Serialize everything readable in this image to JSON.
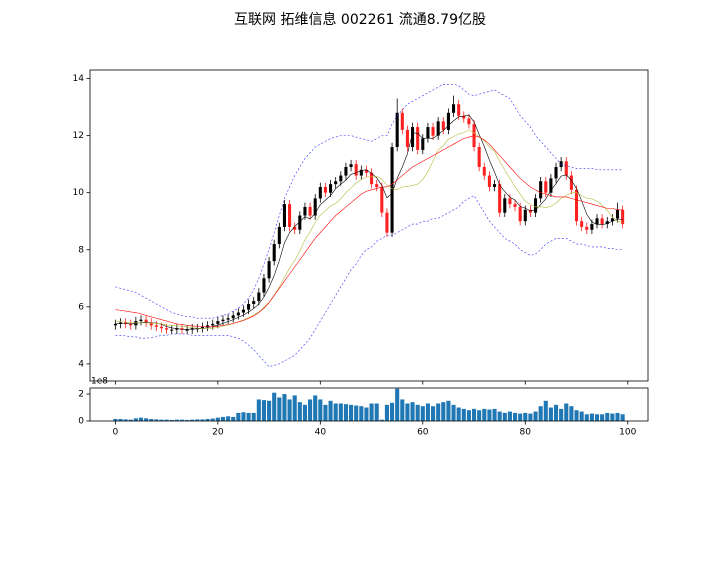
{
  "chart_data": [
    {
      "type": "candlestick",
      "title": "互联网 拓维信息 002261 流通8.79亿股",
      "x": [
        0,
        1,
        2,
        3,
        4,
        5,
        6,
        7,
        8,
        9,
        10,
        11,
        12,
        13,
        14,
        15,
        16,
        17,
        18,
        19,
        20,
        21,
        22,
        23,
        24,
        25,
        26,
        27,
        28,
        29,
        30,
        31,
        32,
        33,
        34,
        35,
        36,
        37,
        38,
        39,
        40,
        41,
        42,
        43,
        44,
        45,
        46,
        47,
        48,
        49,
        50,
        51,
        52,
        53,
        54,
        55,
        56,
        57,
        58,
        59,
        60,
        61,
        62,
        63,
        64,
        65,
        66,
        67,
        68,
        69,
        70,
        71,
        72,
        73,
        74,
        75,
        76,
        77,
        78,
        79,
        80,
        81,
        82,
        83,
        84,
        85,
        86,
        87,
        88,
        89,
        90,
        91,
        92,
        93,
        94,
        95,
        96,
        97,
        98,
        99
      ],
      "open": [
        5.35,
        5.4,
        5.45,
        5.4,
        5.35,
        5.5,
        5.55,
        5.45,
        5.35,
        5.3,
        5.25,
        5.2,
        5.2,
        5.25,
        5.2,
        5.2,
        5.25,
        5.25,
        5.3,
        5.35,
        5.4,
        5.5,
        5.55,
        5.6,
        5.7,
        5.8,
        5.9,
        6.1,
        6.2,
        6.5,
        7.0,
        7.6,
        8.2,
        8.8,
        9.6,
        8.8,
        8.7,
        9.2,
        9.5,
        9.2,
        9.8,
        10.2,
        10.0,
        10.3,
        10.4,
        10.6,
        10.9,
        11.0,
        10.6,
        10.8,
        10.7,
        10.3,
        10.2,
        9.3,
        8.6,
        11.6,
        12.8,
        12.2,
        11.6,
        12.3,
        11.5,
        11.9,
        12.3,
        12.0,
        12.5,
        12.2,
        12.8,
        13.1,
        12.7,
        12.6,
        12.4,
        11.6,
        10.9,
        10.6,
        10.2,
        10.3,
        9.3,
        9.8,
        9.6,
        9.5,
        9.0,
        9.4,
        9.3,
        9.8,
        10.4,
        10.0,
        10.5,
        10.9,
        11.1,
        10.6,
        10.1,
        9.0,
        8.8,
        8.7,
        8.9,
        9.1,
        8.9,
        9.0,
        9.1,
        9.4
      ],
      "high": [
        5.55,
        5.6,
        5.6,
        5.55,
        5.65,
        5.7,
        5.7,
        5.6,
        5.5,
        5.45,
        5.4,
        5.35,
        5.4,
        5.4,
        5.35,
        5.4,
        5.4,
        5.45,
        5.5,
        5.55,
        5.65,
        5.7,
        5.75,
        5.85,
        5.95,
        6.05,
        6.25,
        6.35,
        6.65,
        7.15,
        7.75,
        8.35,
        8.95,
        9.75,
        9.75,
        8.95,
        9.35,
        9.65,
        9.65,
        9.95,
        10.35,
        10.35,
        10.45,
        10.55,
        10.75,
        11.05,
        11.15,
        11.15,
        10.95,
        10.95,
        10.85,
        10.45,
        10.35,
        9.45,
        11.75,
        13.3,
        12.95,
        12.35,
        12.45,
        12.45,
        12.05,
        12.45,
        12.45,
        12.65,
        12.65,
        12.95,
        13.4,
        13.25,
        12.85,
        12.75,
        12.55,
        11.75,
        11.05,
        10.75,
        10.45,
        10.45,
        9.95,
        9.95,
        9.75,
        9.65,
        9.55,
        9.55,
        9.95,
        10.55,
        10.55,
        10.65,
        11.05,
        11.25,
        11.25,
        10.75,
        10.25,
        9.15,
        8.95,
        9.05,
        9.25,
        9.25,
        9.15,
        9.25,
        9.65,
        9.55
      ],
      "low": [
        5.2,
        5.25,
        5.25,
        5.2,
        5.2,
        5.35,
        5.3,
        5.2,
        5.15,
        5.1,
        5.05,
        5.05,
        5.05,
        5.05,
        5.05,
        5.05,
        5.1,
        5.1,
        5.15,
        5.2,
        5.25,
        5.35,
        5.4,
        5.45,
        5.55,
        5.65,
        5.75,
        5.95,
        6.05,
        6.35,
        6.85,
        7.45,
        8.05,
        8.65,
        8.65,
        8.55,
        8.55,
        9.05,
        9.05,
        9.05,
        9.65,
        9.85,
        9.85,
        10.15,
        10.25,
        10.45,
        10.75,
        10.45,
        10.45,
        10.55,
        10.15,
        10.05,
        9.15,
        8.45,
        8.45,
        11.45,
        12.05,
        11.45,
        11.45,
        11.35,
        11.35,
        11.75,
        11.85,
        11.85,
        12.05,
        12.05,
        12.65,
        12.55,
        12.45,
        12.25,
        11.45,
        10.75,
        10.45,
        10.05,
        10.05,
        9.15,
        9.15,
        9.45,
        9.35,
        8.85,
        8.85,
        9.15,
        9.15,
        9.65,
        9.85,
        9.85,
        10.35,
        10.75,
        10.45,
        9.95,
        8.85,
        8.65,
        8.55,
        8.55,
        8.75,
        8.75,
        8.75,
        8.85,
        8.95,
        8.75
      ],
      "close": [
        5.4,
        5.45,
        5.4,
        5.35,
        5.5,
        5.55,
        5.45,
        5.35,
        5.3,
        5.25,
        5.2,
        5.2,
        5.25,
        5.2,
        5.2,
        5.25,
        5.25,
        5.3,
        5.35,
        5.4,
        5.5,
        5.55,
        5.6,
        5.7,
        5.8,
        5.9,
        6.1,
        6.2,
        6.5,
        7.0,
        7.6,
        8.2,
        8.8,
        9.6,
        8.8,
        8.7,
        9.2,
        9.5,
        9.2,
        9.8,
        10.2,
        10.0,
        10.3,
        10.4,
        10.6,
        10.9,
        11.0,
        10.6,
        10.8,
        10.7,
        10.3,
        10.2,
        9.3,
        8.6,
        11.6,
        12.8,
        12.2,
        11.6,
        12.3,
        11.5,
        11.9,
        12.3,
        12.0,
        12.5,
        12.2,
        12.8,
        13.1,
        12.7,
        12.6,
        12.4,
        11.6,
        10.9,
        10.6,
        10.2,
        10.3,
        9.3,
        9.8,
        9.6,
        9.5,
        9.0,
        9.4,
        9.3,
        9.8,
        10.4,
        10.0,
        10.5,
        10.9,
        11.1,
        10.6,
        10.1,
        9.0,
        8.8,
        8.7,
        8.9,
        9.1,
        8.9,
        9.0,
        9.1,
        9.4,
        8.9
      ],
      "up_color": "#000000",
      "down_color": "#ff2020",
      "series": [
        {
          "color": "#000000",
          "dash": "none",
          "values": [
            5.4,
            5.42,
            5.42,
            5.4,
            5.42,
            5.45,
            5.46,
            5.44,
            5.43,
            5.38,
            5.31,
            5.26,
            5.24,
            5.21,
            5.21,
            5.22,
            5.23,
            5.24,
            5.27,
            5.31,
            5.36,
            5.42,
            5.48,
            5.55,
            5.63,
            5.71,
            5.82,
            5.94,
            6.1,
            6.34,
            6.68,
            7.1,
            7.62,
            8.24,
            8.6,
            8.82,
            8.98,
            9.16,
            9.08,
            9.28,
            9.58,
            9.74,
            9.9,
            10.14,
            10.3,
            10.44,
            10.64,
            10.7,
            10.78,
            10.8,
            10.68,
            10.52,
            10.26,
            9.82,
            9.98,
            10.5,
            10.9,
            11.36,
            12.1,
            12.08,
            11.9,
            11.92,
            11.9,
            12.04,
            12.18,
            12.36,
            12.52,
            12.66,
            12.68,
            12.72,
            12.48,
            12.04,
            11.62,
            11.14,
            10.72,
            10.26,
            10.04,
            9.84,
            9.74,
            9.52,
            9.46,
            9.36,
            9.4,
            9.58,
            9.78,
            10.08,
            10.32,
            10.58,
            10.62,
            10.44,
            10.14,
            9.72,
            9.24,
            8.98,
            8.88,
            8.88,
            8.92,
            9.0,
            9.08,
            9.06
          ]
        },
        {
          "color": "#b5bd3c",
          "dash": "none",
          "values": [
            5.5,
            5.48,
            5.46,
            5.45,
            5.44,
            5.44,
            5.44,
            5.43,
            5.42,
            5.4,
            5.36,
            5.35,
            5.33,
            5.32,
            5.3,
            5.27,
            5.25,
            5.24,
            5.24,
            5.25,
            5.28,
            5.32,
            5.36,
            5.41,
            5.47,
            5.54,
            5.62,
            5.71,
            5.82,
            5.98,
            6.16,
            6.4,
            6.69,
            7.04,
            7.36,
            7.62,
            7.96,
            8.35,
            8.62,
            8.96,
            9.22,
            9.36,
            9.54,
            9.62,
            9.79,
            10.0,
            10.17,
            10.34,
            10.46,
            10.55,
            10.56,
            10.58,
            10.48,
            10.26,
            10.14,
            10.11,
            10.2,
            10.22,
            10.25,
            10.3,
            10.46,
            10.74,
            11.11,
            11.5,
            11.65,
            11.88,
            11.96,
            12.06,
            12.1,
            12.2,
            12.1,
            11.96,
            11.82,
            11.6,
            11.45,
            11.1,
            10.8,
            10.5,
            10.2,
            9.95,
            9.7,
            9.58,
            9.5,
            9.51,
            9.48,
            9.52,
            9.64,
            9.8,
            9.9,
            10.0,
            10.0,
            9.9,
            9.8,
            9.78,
            9.7,
            9.56,
            9.38,
            9.14,
            9.0,
            8.95
          ]
        },
        {
          "color": "#ff0000",
          "dash": "none",
          "values": [
            5.9,
            5.88,
            5.85,
            5.82,
            5.8,
            5.75,
            5.7,
            5.65,
            5.6,
            5.55,
            5.5,
            5.45,
            5.4,
            5.38,
            5.35,
            5.33,
            5.32,
            5.31,
            5.3,
            5.3,
            5.32,
            5.35,
            5.38,
            5.42,
            5.47,
            5.52,
            5.6,
            5.68,
            5.8,
            5.95,
            6.15,
            6.4,
            6.65,
            6.9,
            7.15,
            7.4,
            7.65,
            7.9,
            8.15,
            8.4,
            8.6,
            8.8,
            9.0,
            9.2,
            9.35,
            9.5,
            9.65,
            9.8,
            9.95,
            10.05,
            10.1,
            10.15,
            10.2,
            10.2,
            10.3,
            10.45,
            10.6,
            10.75,
            10.9,
            11.0,
            11.1,
            11.2,
            11.3,
            11.4,
            11.5,
            11.6,
            11.7,
            11.8,
            11.9,
            11.95,
            12.0,
            11.95,
            11.85,
            11.7,
            11.5,
            11.3,
            11.1,
            10.9,
            10.7,
            10.5,
            10.35,
            10.2,
            10.1,
            10.0,
            9.95,
            9.9,
            9.85,
            9.85,
            9.85,
            9.8,
            9.75,
            9.7,
            9.65,
            9.6,
            9.55,
            9.5,
            9.45,
            9.45,
            9.4,
            9.4
          ]
        },
        {
          "color": "#3030ff",
          "dash": "2,2",
          "values": [
            6.7,
            6.65,
            6.6,
            6.55,
            6.5,
            6.4,
            6.3,
            6.2,
            6.1,
            6.0,
            5.9,
            5.8,
            5.75,
            5.7,
            5.65,
            5.65,
            5.6,
            5.6,
            5.6,
            5.6,
            5.65,
            5.7,
            5.75,
            5.85,
            5.95,
            6.1,
            6.3,
            6.6,
            7.0,
            7.5,
            8.0,
            8.6,
            9.2,
            9.8,
            10.2,
            10.6,
            10.9,
            11.2,
            11.4,
            11.6,
            11.7,
            11.8,
            11.9,
            11.95,
            12.0,
            12.0,
            12.0,
            11.95,
            11.9,
            11.85,
            11.8,
            11.9,
            12.0,
            12.0,
            12.4,
            12.7,
            12.9,
            13.1,
            13.2,
            13.3,
            13.4,
            13.5,
            13.6,
            13.7,
            13.8,
            13.8,
            13.8,
            13.75,
            13.6,
            13.45,
            13.4,
            13.45,
            13.5,
            13.55,
            13.6,
            13.5,
            13.4,
            13.3,
            13.0,
            12.7,
            12.5,
            12.3,
            12.0,
            11.8,
            11.6,
            11.4,
            11.2,
            11.0,
            10.95,
            10.9,
            10.85,
            10.85,
            10.85,
            10.85,
            10.8,
            10.8,
            10.8,
            10.8,
            10.8,
            10.8
          ]
        },
        {
          "color": "#3030ff",
          "dash": "2,2",
          "values": [
            5.0,
            5.0,
            4.98,
            4.95,
            4.95,
            4.9,
            4.9,
            4.92,
            4.95,
            5.0,
            5.0,
            5.05,
            5.05,
            5.05,
            5.05,
            5.0,
            5.0,
            5.0,
            5.0,
            5.0,
            5.0,
            5.0,
            5.0,
            4.95,
            4.9,
            4.8,
            4.65,
            4.5,
            4.3,
            4.1,
            3.9,
            3.95,
            4.0,
            4.1,
            4.2,
            4.3,
            4.5,
            4.7,
            4.9,
            5.2,
            5.5,
            5.8,
            6.1,
            6.4,
            6.7,
            7.0,
            7.3,
            7.5,
            7.8,
            8.0,
            8.1,
            8.3,
            8.4,
            8.5,
            8.5,
            8.6,
            8.7,
            8.8,
            8.9,
            8.9,
            9.0,
            9.0,
            9.1,
            9.1,
            9.2,
            9.3,
            9.4,
            9.5,
            9.7,
            9.8,
            9.9,
            9.6,
            9.3,
            9.0,
            8.8,
            8.6,
            8.4,
            8.3,
            8.2,
            8.0,
            7.9,
            7.8,
            7.85,
            8.0,
            8.2,
            8.3,
            8.4,
            8.4,
            8.4,
            8.3,
            8.2,
            8.2,
            8.15,
            8.1,
            8.1,
            8.1,
            8.05,
            8.05,
            8.0,
            8.0
          ]
        }
      ],
      "xlim": [
        -4.95,
        103.95
      ],
      "xticks": [
        0,
        20,
        40,
        60,
        80,
        100
      ],
      "show_xtick_labels": false,
      "ylim": [
        3.4,
        14.3
      ],
      "yticks": [
        4,
        6,
        8,
        10,
        12,
        14
      ]
    },
    {
      "type": "bar",
      "offset_label": "1e8",
      "color": "#1f77b4",
      "x": [
        0,
        1,
        2,
        3,
        4,
        5,
        6,
        7,
        8,
        9,
        10,
        11,
        12,
        13,
        14,
        15,
        16,
        17,
        18,
        19,
        20,
        21,
        22,
        23,
        24,
        25,
        26,
        27,
        28,
        29,
        30,
        31,
        32,
        33,
        34,
        35,
        36,
        37,
        38,
        39,
        40,
        41,
        42,
        43,
        44,
        45,
        46,
        47,
        48,
        49,
        50,
        51,
        52,
        53,
        54,
        55,
        56,
        57,
        58,
        59,
        60,
        61,
        62,
        63,
        64,
        65,
        66,
        67,
        68,
        69,
        70,
        71,
        72,
        73,
        74,
        75,
        76,
        77,
        78,
        79,
        80,
        81,
        82,
        83,
        84,
        85,
        86,
        87,
        88,
        89,
        90,
        91,
        92,
        93,
        94,
        95,
        96,
        97,
        98,
        99
      ],
      "values": [
        0.15,
        0.15,
        0.12,
        0.1,
        0.2,
        0.25,
        0.2,
        0.15,
        0.12,
        0.1,
        0.1,
        0.08,
        0.1,
        0.1,
        0.08,
        0.1,
        0.12,
        0.12,
        0.15,
        0.18,
        0.25,
        0.3,
        0.35,
        0.3,
        0.6,
        0.65,
        0.6,
        0.6,
        1.6,
        1.55,
        1.5,
        2.1,
        1.75,
        2.0,
        1.6,
        1.9,
        1.4,
        1.2,
        1.6,
        1.9,
        1.6,
        1.2,
        1.5,
        1.3,
        1.3,
        1.25,
        1.2,
        1.15,
        1.1,
        1.0,
        1.3,
        1.3,
        0.1,
        1.2,
        1.35,
        2.4,
        1.6,
        1.3,
        1.4,
        1.2,
        1.1,
        1.3,
        1.1,
        1.3,
        1.4,
        1.5,
        1.2,
        1.0,
        0.9,
        0.8,
        0.9,
        0.8,
        0.9,
        0.85,
        0.9,
        0.7,
        0.6,
        0.7,
        0.6,
        0.55,
        0.6,
        0.55,
        0.7,
        1.1,
        1.5,
        1.0,
        1.2,
        0.9,
        1.3,
        1.1,
        0.8,
        0.7,
        0.5,
        0.55,
        0.5,
        0.5,
        0.6,
        0.55,
        0.6,
        0.5
      ],
      "xlim": [
        -4.95,
        103.95
      ],
      "xticks": [
        0,
        20,
        40,
        60,
        80,
        100
      ],
      "show_xtick_labels": true,
      "ylim": [
        0,
        2.45
      ],
      "yticks": [
        0,
        2
      ]
    }
  ]
}
